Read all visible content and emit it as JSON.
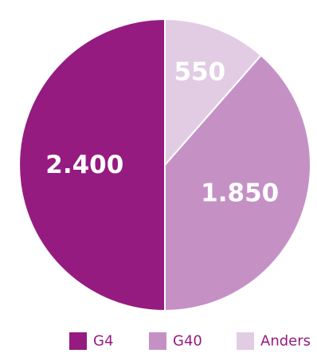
{
  "chart_data": {
    "type": "pie",
    "slices": [
      {
        "label": "G4",
        "value": 2400,
        "display": "2.400",
        "color": "#951B81"
      },
      {
        "label": "G40",
        "value": 1850,
        "display": "1.850",
        "color": "#C591C5"
      },
      {
        "label": "Anders",
        "value": 550,
        "display": "550",
        "color": "#E2CCE4"
      }
    ],
    "start_angle_deg": 0,
    "direction": "counterclockwise",
    "legend_position": "bottom-right",
    "legend_text_color": "#951B81",
    "title": ""
  }
}
